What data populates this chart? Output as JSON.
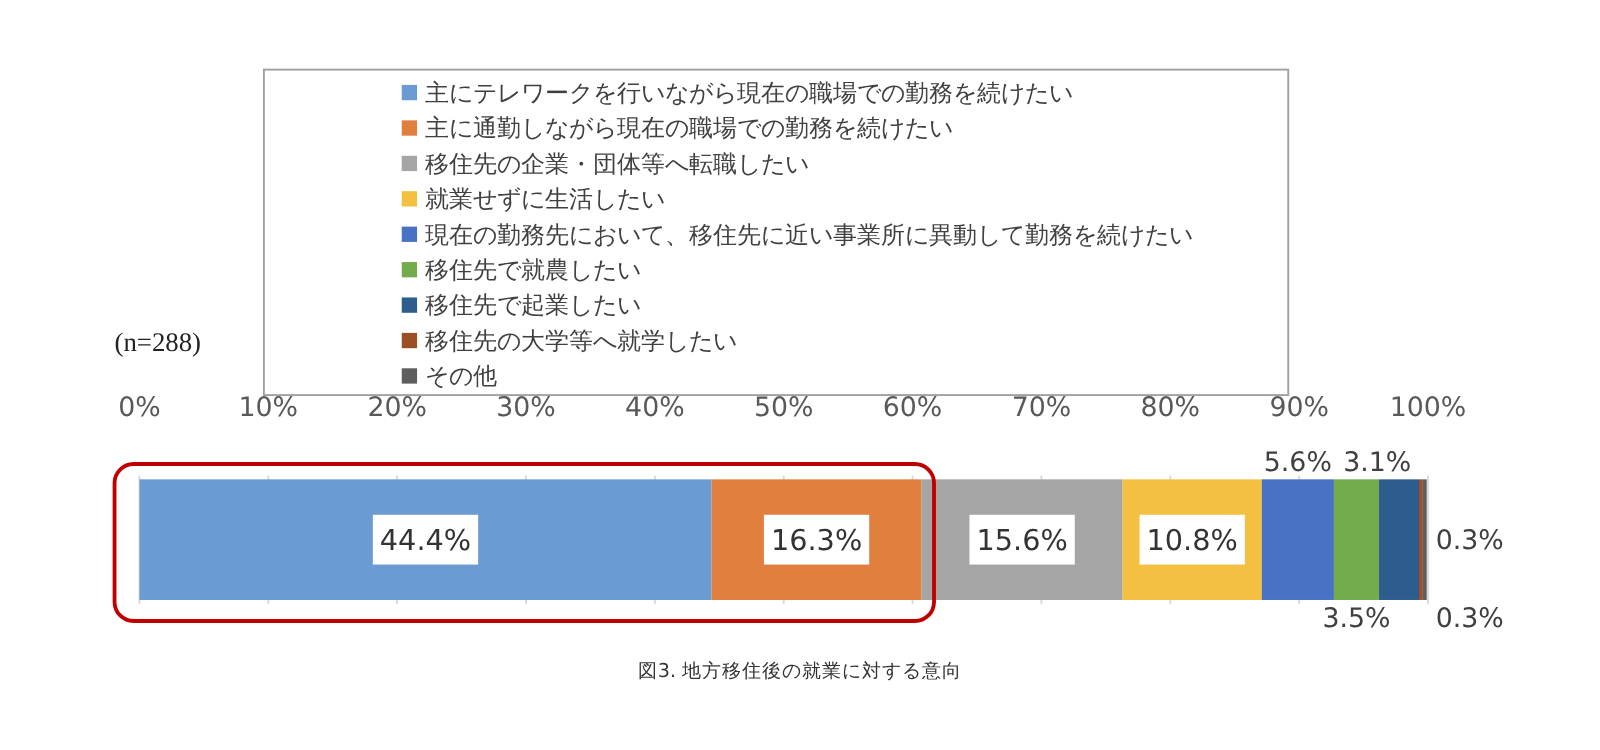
{
  "chart_data": {
    "type": "bar",
    "orientation": "horizontal",
    "stacked": true,
    "categories": [
      null
    ],
    "series": [
      {
        "name": "主にテレワークを行いながら現在の職場での勤務を続けたい",
        "color": "#6a9bd2",
        "values": [
          44.4
        ],
        "value_labels": [
          "44.4%"
        ]
      },
      {
        "name": "主に通勤しながら現在の職場での勤務を続けたい",
        "color": "#e07f3e",
        "values": [
          16.3
        ],
        "value_labels": [
          "16.3%"
        ]
      },
      {
        "name": "移住先の企業・団体等へ転職したい",
        "color": "#a5a5a5",
        "values": [
          15.6
        ],
        "value_labels": [
          "15.6%"
        ]
      },
      {
        "name": "就業せずに生活したい",
        "color": "#f4c042",
        "values": [
          10.8
        ],
        "value_labels": [
          "10.8%"
        ]
      },
      {
        "name": "現在の勤務先において、移住先に近い事業所に異動して勤務を続けたい",
        "color": "#4a72c4",
        "values": [
          5.6
        ],
        "value_labels": [
          "5.6%"
        ]
      },
      {
        "name": "移住先で就農したい",
        "color": "#72ac4c",
        "values": [
          3.5
        ],
        "value_labels": [
          "3.5%"
        ]
      },
      {
        "name": "移住先で起業したい",
        "color": "#2d5c8f",
        "values": [
          3.1
        ],
        "value_labels": [
          "3.1%"
        ]
      },
      {
        "name": "移住先の大学等へ就学したい",
        "color": "#9c4f25",
        "values": [
          0.3
        ],
        "value_labels": [
          "0.3%"
        ]
      },
      {
        "name": "その他",
        "color": "#5e5e5e",
        "values": [
          0.3
        ],
        "value_labels": [
          "0.3%"
        ]
      }
    ],
    "xlim": [
      0,
      100
    ],
    "xticks": [
      {
        "value": 0,
        "label": "0%"
      },
      {
        "value": 10,
        "label": "10%"
      },
      {
        "value": 20,
        "label": "20%"
      },
      {
        "value": 30,
        "label": "30%"
      },
      {
        "value": 40,
        "label": "40%"
      },
      {
        "value": 50,
        "label": "50%"
      },
      {
        "value": 60,
        "label": "60%"
      },
      {
        "value": 70,
        "label": "70%"
      },
      {
        "value": 80,
        "label": "80%"
      },
      {
        "value": 90,
        "label": "90%"
      },
      {
        "value": 100,
        "label": "100%"
      }
    ],
    "grid": "x",
    "legend": "top",
    "annotations": [
      "(n=288)",
      "図3. 地方移住後の就業に対する意向"
    ]
  }
}
